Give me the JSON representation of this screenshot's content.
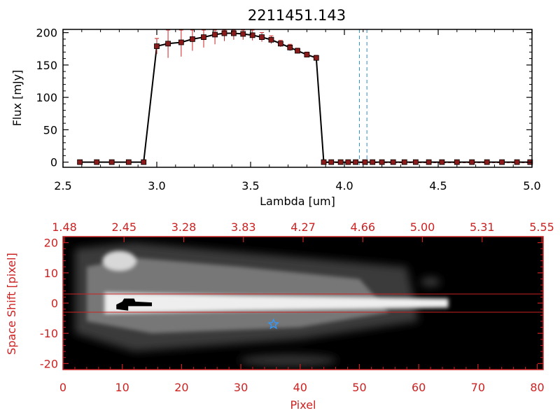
{
  "chart_data": [
    {
      "type": "line",
      "title": "2211451.143",
      "xlabel": "Lambda [um]",
      "ylabel": "Flux [mJy]",
      "xlim": [
        2.5,
        5.0
      ],
      "ylim": [
        -8,
        205
      ],
      "x_ticks": [
        "2.5",
        "3.0",
        "3.5",
        "4.0",
        "4.5",
        "5.0"
      ],
      "y_ticks": [
        "0",
        "50",
        "100",
        "150",
        "200"
      ],
      "grid": false,
      "line_color": "#000000",
      "marker_color": "#8b1a1a",
      "error_color": "#cc2222",
      "vlines": [
        4.08,
        4.12
      ],
      "vline_color": "#2a8fc4",
      "zero_line_color": "#cc2222",
      "x": [
        2.59,
        2.68,
        2.76,
        2.85,
        2.93,
        3.0,
        3.06,
        3.13,
        3.19,
        3.25,
        3.31,
        3.36,
        3.41,
        3.46,
        3.51,
        3.56,
        3.61,
        3.66,
        3.71,
        3.75,
        3.8,
        3.85,
        3.89,
        3.93,
        3.98,
        4.02,
        4.06,
        4.11,
        4.15,
        4.2,
        4.26,
        4.32,
        4.38,
        4.45,
        4.52,
        4.6,
        4.68,
        4.76,
        4.84,
        4.92,
        4.99
      ],
      "y": [
        0,
        0,
        0,
        0,
        0,
        179,
        183,
        185,
        190,
        193,
        197,
        199,
        199,
        198,
        196,
        193,
        189,
        183,
        177,
        172,
        166,
        161,
        0,
        0,
        0,
        0,
        0,
        0,
        0,
        0,
        0,
        0,
        0,
        0,
        0,
        0,
        0,
        0,
        0,
        0,
        0
      ],
      "y_err": [
        0,
        0,
        0,
        0,
        0,
        12,
        22,
        22,
        18,
        16,
        15,
        12,
        10,
        9,
        8,
        7,
        6,
        5,
        5,
        4,
        4,
        4,
        0,
        0,
        0,
        0,
        0,
        0,
        0,
        0,
        0,
        0,
        0,
        0,
        0,
        0,
        0,
        0,
        0,
        0,
        0
      ]
    },
    {
      "type": "heatmap",
      "xlabel": "Pixel",
      "ylabel": "Space Shift [pixel]",
      "xlim": [
        0,
        81
      ],
      "ylim": [
        -22,
        22
      ],
      "x_ticks": [
        "0",
        "10",
        "20",
        "30",
        "40",
        "50",
        "60",
        "70",
        "80"
      ],
      "y_ticks": [
        "-20",
        "-10",
        "0",
        "10",
        "20"
      ],
      "top_axis_ticks": [
        "1.48",
        "2.45",
        "3.28",
        "3.83",
        "4.27",
        "4.66",
        "5.00",
        "5.31",
        "5.55"
      ],
      "axis_color": "#cc2222",
      "colormap": "grayscale",
      "background_color": "#000000",
      "hlines": [
        3,
        -3
      ],
      "hline_color": "#cc2222",
      "star_marker": {
        "x": 35.5,
        "y": -7,
        "color": "#3399ff"
      },
      "trace": {
        "x_start": 7,
        "x_end": 65,
        "y_center": 0
      },
      "knot": {
        "x": 9.5,
        "y": 14
      }
    }
  ]
}
